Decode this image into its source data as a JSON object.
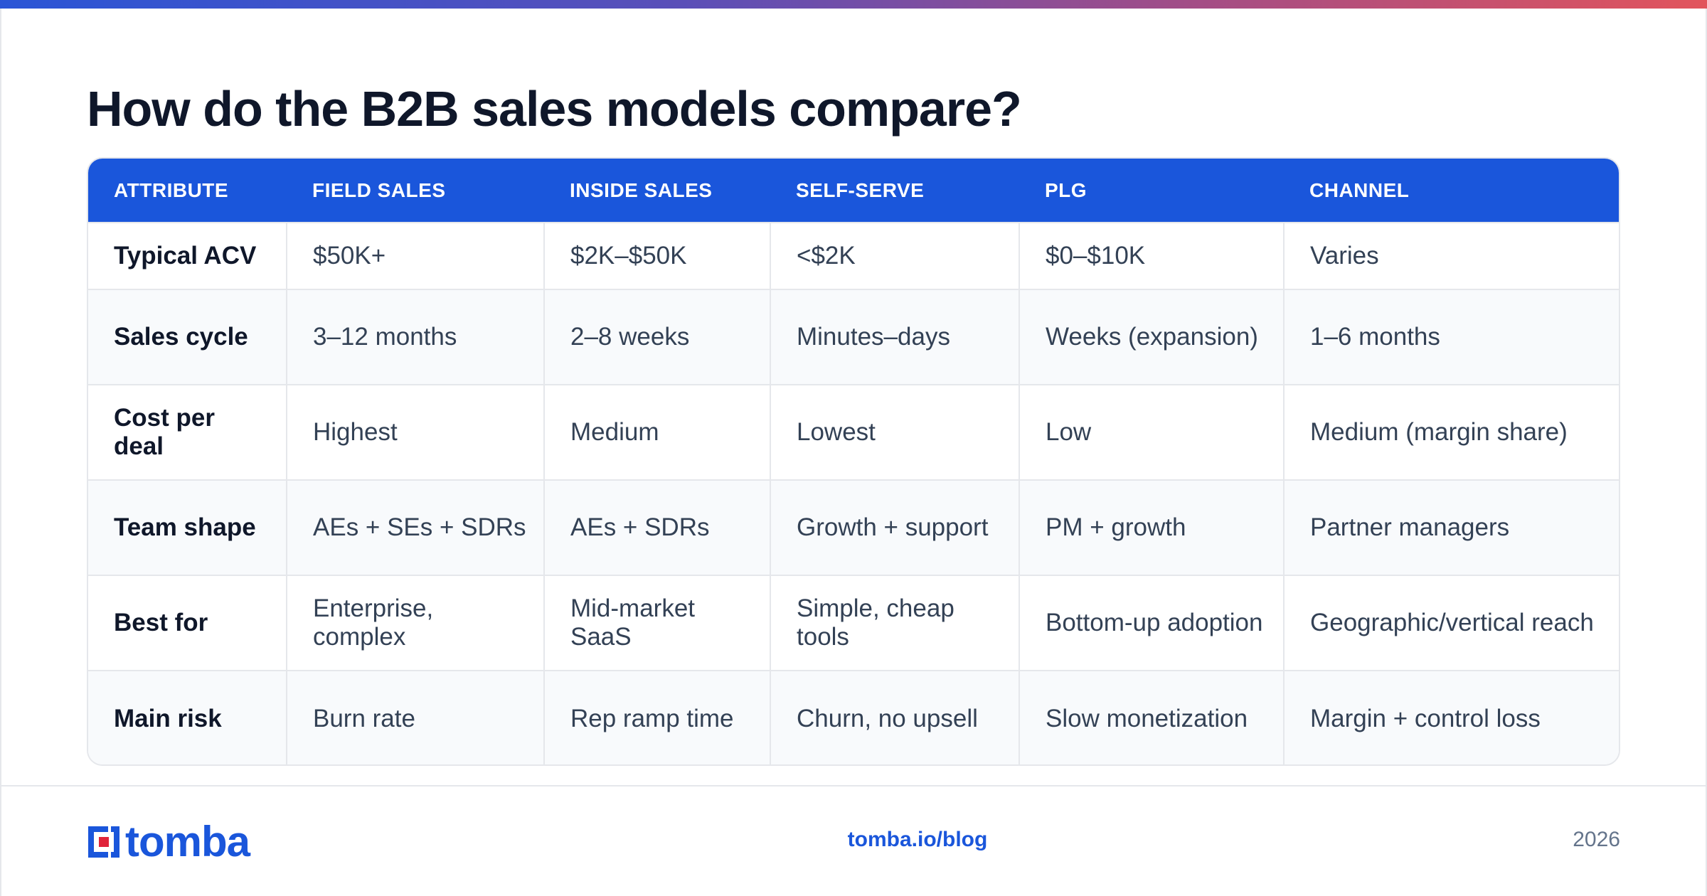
{
  "title": "How do the B2B sales models compare?",
  "table": {
    "columns": [
      "ATTRIBUTE",
      "FIELD SALES",
      "INSIDE SALES",
      "SELF-SERVE",
      "PLG",
      "CHANNEL"
    ],
    "rows": [
      [
        "Typical ACV",
        "$50K+",
        "$2K–$50K",
        "<$2K",
        "$0–$10K",
        "Varies"
      ],
      [
        "Sales cycle",
        "3–12 months",
        "2–8 weeks",
        "Minutes–days",
        "Weeks (expansion)",
        "1–6 months"
      ],
      [
        "Cost per deal",
        "Highest",
        "Medium",
        "Lowest",
        "Low",
        "Medium (margin share)"
      ],
      [
        "Team shape",
        "AEs + SEs + SDRs",
        "AEs + SDRs",
        "Growth + support",
        "PM + growth",
        "Partner managers"
      ],
      [
        "Best for",
        "Enterprise, complex",
        "Mid-market SaaS",
        "Simple, cheap tools",
        "Bottom-up adoption",
        "Geographic/vertical reach"
      ],
      [
        "Main risk",
        "Burn rate",
        "Rep ramp time",
        "Churn, no upsell",
        "Slow monetization",
        "Margin + control loss"
      ]
    ]
  },
  "footer": {
    "brand": "tomba",
    "url": "tomba.io/blog",
    "year": "2026"
  },
  "colors": {
    "accent": "#1a56db",
    "header_bg": "#1a56db",
    "brand_red": "#e0243a"
  },
  "icons": [
    "tomba-logo-icon"
  ]
}
